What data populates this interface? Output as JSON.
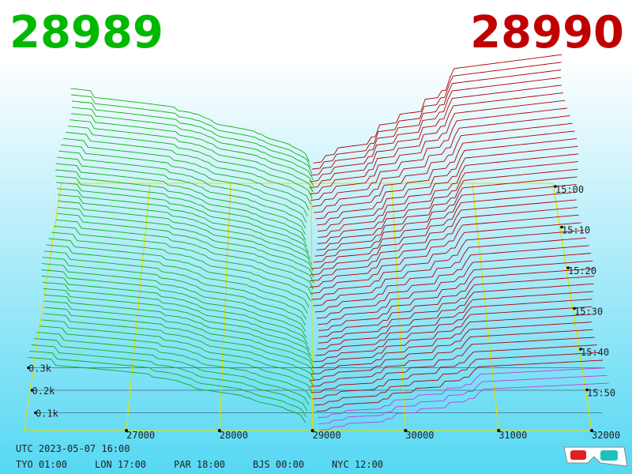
{
  "header": {
    "bid_price": "28989",
    "ask_price": "28990"
  },
  "price_axis": {
    "ticks": [
      27000,
      28000,
      29000,
      30000,
      31000,
      32000
    ]
  },
  "depth_axis": {
    "ticks": [
      {
        "value": 300,
        "label": "0.3k"
      },
      {
        "value": 200,
        "label": "0.2k"
      },
      {
        "value": 100,
        "label": "0.1k"
      }
    ]
  },
  "time_axis": {
    "ticks": [
      "15:00",
      "15:10",
      "15:20",
      "15:30",
      "15:40",
      "15:50"
    ]
  },
  "footer": {
    "utc": "UTC 2023-05-07 16:00",
    "clocks": [
      "TYO 01:00",
      "LON 17:00",
      "PAR 18:00",
      "BJS 00:00",
      "NYC 12:00"
    ]
  }
}
